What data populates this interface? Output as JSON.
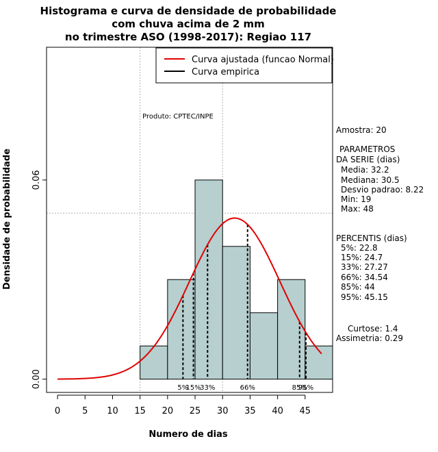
{
  "chart_data": {
    "type": "bar",
    "title_lines": [
      "Histograma e curva de densidade de probabilidade",
      "com chuva acima de 2 mm",
      "no trimestre ASO (1998-2017): Regiao 117"
    ],
    "xlabel": "Numero de dias",
    "ylabel": "Densidade de probabilidade",
    "xlim": [
      -2,
      50
    ],
    "ylim": [
      -0.004,
      0.1
    ],
    "x_ticks": [
      0,
      5,
      10,
      15,
      20,
      25,
      30,
      35,
      40,
      45
    ],
    "y_ticks": [
      0.0,
      0.06
    ],
    "y_tick_labels": [
      "0.00",
      "0.06"
    ],
    "grid_x": [
      15,
      30
    ],
    "grid_y": [
      0.05,
      0.1
    ],
    "histogram": {
      "bins": [
        [
          15,
          20
        ],
        [
          20,
          25
        ],
        [
          25,
          30
        ],
        [
          30,
          35
        ],
        [
          35,
          40
        ],
        [
          40,
          45
        ],
        [
          45,
          50
        ]
      ],
      "density": [
        0.01,
        0.03,
        0.06,
        0.04,
        0.02,
        0.03,
        0.01
      ],
      "fill": "#b7cfcf"
    },
    "normal_fit": {
      "mean": 32.2,
      "sd": 8.22,
      "x_from": 0,
      "x_to": 48,
      "color": "#e00000"
    },
    "percentiles": [
      {
        "label": "5%",
        "value": 22.8
      },
      {
        "label": "15%",
        "value": 24.7
      },
      {
        "label": "33%",
        "value": 27.27
      },
      {
        "label": "66%",
        "value": 34.54
      },
      {
        "label": "85%",
        "value": 44
      },
      {
        "label": "95%",
        "value": 45.15
      }
    ],
    "legend": [
      {
        "label": "Curva ajustada (funcao Normal)",
        "color": "#e00000"
      },
      {
        "label": "Curva empirica",
        "color": "#000000"
      }
    ],
    "legend_position": "top-right",
    "annotation": "Produto: CPTEC/INPE"
  },
  "side_panel": {
    "amostra": "Amostra: 20",
    "parametros_title_1": "PARAMETROS",
    "parametros_title_2": "DA SERIE (dias)",
    "media": "Media: 32.2",
    "mediana": "Mediana: 30.5",
    "desvio": "Desvio padrao: 8.22",
    "min": "Min: 19",
    "max": "Max: 48",
    "percentis_title": "PERCENTIS (dias)",
    "p5": "5%: 22.8",
    "p15": "15%: 24.7",
    "p33": "33%: 27.27",
    "p66": "66%: 34.54",
    "p85": "85%: 44",
    "p95": "95%: 45.15",
    "curtose": "Curtose: 1.4",
    "assimetria": "Assimetria: 0.29"
  }
}
